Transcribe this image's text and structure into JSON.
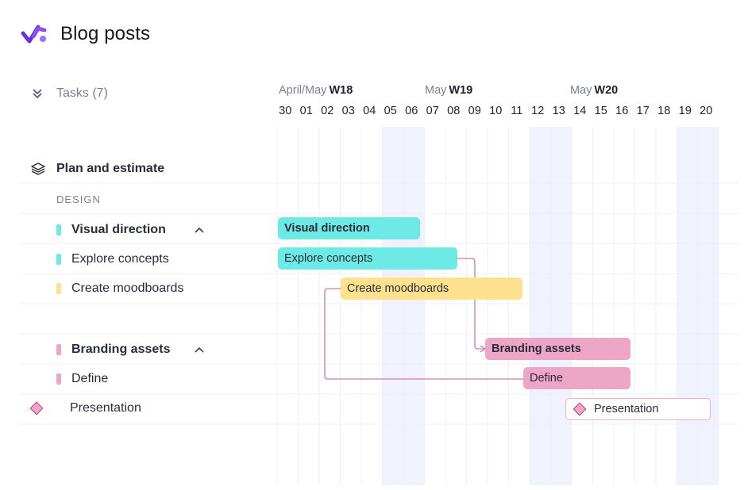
{
  "header": {
    "title": "Blog posts",
    "logo_icon": "checkmark-logo-icon"
  },
  "tasks_header": {
    "label": "Tasks (7)"
  },
  "timeline": {
    "weeks": [
      {
        "prefix": "April/May",
        "week": "W18"
      },
      {
        "prefix": "May",
        "week": "W19"
      },
      {
        "prefix": "May",
        "week": "W20"
      }
    ],
    "days": [
      "30",
      "01",
      "02",
      "03",
      "04",
      "05",
      "06",
      "07",
      "08",
      "09",
      "10",
      "11",
      "12",
      "13",
      "14",
      "15",
      "16",
      "17",
      "18",
      "19",
      "20"
    ],
    "weekend_days": [
      "05",
      "06",
      "12",
      "13",
      "19",
      "20"
    ]
  },
  "rows": {
    "plan": {
      "label": "Plan and estimate",
      "icon": "layers-icon"
    },
    "section": {
      "label": "DESIGN"
    },
    "visual_direction": {
      "label": "Visual direction",
      "color": "#6eeae6"
    },
    "explore": {
      "label": "Explore concepts",
      "color": "#6eeae6"
    },
    "moodboards": {
      "label": "Create moodboards",
      "color": "#fde18e"
    },
    "branding": {
      "label": "Branding assets",
      "color": "#eea6c6"
    },
    "define": {
      "label": "Define",
      "color": "#eea6c6"
    },
    "presentation": {
      "label": "Presentation",
      "icon": "diamond-milestone-icon"
    }
  },
  "bars": {
    "visual_direction": {
      "label": "Visual direction"
    },
    "explore": {
      "label": "Explore concepts"
    },
    "moodboards": {
      "label": "Create moodboards"
    },
    "branding": {
      "label": "Branding assets"
    },
    "define": {
      "label": "Define"
    },
    "presentation": {
      "label": "Presentation"
    }
  }
}
